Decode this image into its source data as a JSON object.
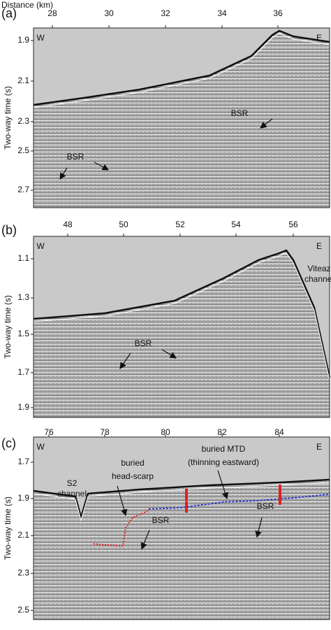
{
  "figure": {
    "distance_label": "Distance (km)",
    "y_axis_label": "Two-way time (s)",
    "panels": [
      {
        "label": "(a)",
        "west": "W",
        "east": "E",
        "x_ticks": [
          "28",
          "30",
          "32",
          "34",
          "36"
        ],
        "y_ticks": [
          "1.9",
          "2.1",
          "2.3",
          "2.5",
          "2.7"
        ],
        "annotations": [
          "BSR",
          "BSR"
        ]
      },
      {
        "label": "(b)",
        "west": "W",
        "east": "E",
        "x_ticks": [
          "48",
          "50",
          "52",
          "54",
          "56"
        ],
        "y_ticks": [
          "1.1",
          "1.3",
          "1.5",
          "1.7",
          "1.9"
        ],
        "annotations": [
          "Viteaz",
          "channel",
          "BSR"
        ]
      },
      {
        "label": "(c)",
        "west": "W",
        "east": "E",
        "x_ticks": [
          "76",
          "78",
          "80",
          "82",
          "84"
        ],
        "y_ticks": [
          "1.7",
          "1.9",
          "2.1",
          "2.3",
          "2.5"
        ],
        "annotations": [
          "S2",
          "channel",
          "buried",
          "head-scarp",
          "buried MTD",
          "(thinning eastward)",
          "BSR",
          "BSR"
        ]
      }
    ]
  }
}
